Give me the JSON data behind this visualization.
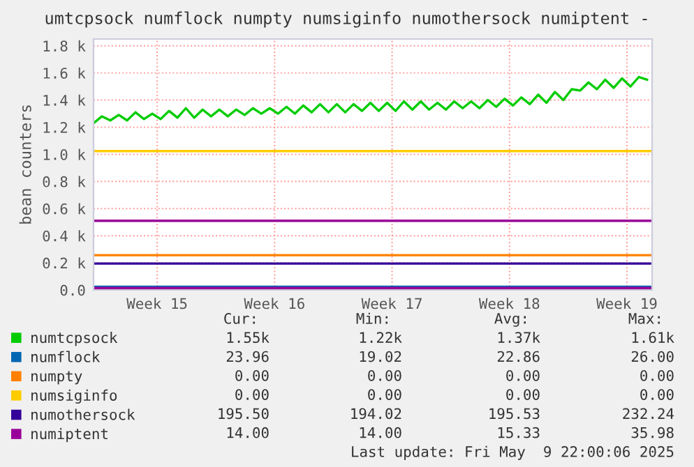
{
  "chart_data": {
    "type": "line",
    "title": "umtcpsock numflock numpty numsiginfo numothersock numiptent -",
    "ylabel": "bean counters",
    "xlim": [
      "2025-04-06T17:00",
      "2025-05-10T00:00"
    ],
    "xticks": [
      {
        "value": "2025-04-10T12:00",
        "label": "Week 15"
      },
      {
        "value": "2025-04-17T12:00",
        "label": "Week 16"
      },
      {
        "value": "2025-04-24T12:00",
        "label": "Week 17"
      },
      {
        "value": "2025-05-01T12:00",
        "label": "Week 18"
      },
      {
        "value": "2025-05-08T12:00",
        "label": "Week 19"
      }
    ],
    "ylim": [
      0,
      1850
    ],
    "yticks": [
      {
        "value": 0,
        "label": "0.0"
      },
      {
        "value": 200,
        "label": "0.2 k"
      },
      {
        "value": 400,
        "label": "0.4 k"
      },
      {
        "value": 600,
        "label": "0.6 k"
      },
      {
        "value": 800,
        "label": "0.8 k"
      },
      {
        "value": 1000,
        "label": "1.0 k"
      },
      {
        "value": 1200,
        "label": "1.2 k"
      },
      {
        "value": 1400,
        "label": "1.4 k"
      },
      {
        "value": 1600,
        "label": "1.6 k"
      },
      {
        "value": 1800,
        "label": "1.8 k"
      }
    ],
    "grid": true,
    "legend": "bottom",
    "series": [
      {
        "name": "numtcpsock",
        "color": "#00cc00",
        "x": [
          "2025-04-06T17:00",
          "2025-04-07T05:00",
          "2025-04-07T17:00",
          "2025-04-08T05:00",
          "2025-04-08T17:00",
          "2025-04-09T05:00",
          "2025-04-09T17:00",
          "2025-04-10T05:00",
          "2025-04-10T17:00",
          "2025-04-11T05:00",
          "2025-04-11T17:00",
          "2025-04-12T05:00",
          "2025-04-12T17:00",
          "2025-04-13T05:00",
          "2025-04-13T17:00",
          "2025-04-14T05:00",
          "2025-04-14T17:00",
          "2025-04-15T05:00",
          "2025-04-15T17:00",
          "2025-04-16T05:00",
          "2025-04-16T17:00",
          "2025-04-17T05:00",
          "2025-04-17T17:00",
          "2025-04-18T05:00",
          "2025-04-18T17:00",
          "2025-04-19T05:00",
          "2025-04-19T17:00",
          "2025-04-20T05:00",
          "2025-04-20T17:00",
          "2025-04-21T05:00",
          "2025-04-21T17:00",
          "2025-04-22T05:00",
          "2025-04-22T17:00",
          "2025-04-23T05:00",
          "2025-04-23T17:00",
          "2025-04-24T05:00",
          "2025-04-24T17:00",
          "2025-04-25T05:00",
          "2025-04-25T17:00",
          "2025-04-26T05:00",
          "2025-04-26T17:00",
          "2025-04-27T05:00",
          "2025-04-27T17:00",
          "2025-04-28T05:00",
          "2025-04-28T17:00",
          "2025-04-29T05:00",
          "2025-04-29T17:00",
          "2025-04-30T05:00",
          "2025-04-30T17:00",
          "2025-05-01T05:00",
          "2025-05-01T17:00",
          "2025-05-02T05:00",
          "2025-05-02T17:00",
          "2025-05-03T05:00",
          "2025-05-03T17:00",
          "2025-05-04T05:00",
          "2025-05-04T17:00",
          "2025-05-05T05:00",
          "2025-05-05T17:00",
          "2025-05-06T05:00",
          "2025-05-06T17:00",
          "2025-05-07T05:00",
          "2025-05-07T17:00",
          "2025-05-08T05:00",
          "2025-05-08T17:00",
          "2025-05-09T05:00",
          "2025-05-09T17:00"
        ],
        "values": [
          1230,
          1280,
          1250,
          1290,
          1250,
          1310,
          1260,
          1300,
          1260,
          1320,
          1270,
          1340,
          1270,
          1330,
          1280,
          1330,
          1280,
          1330,
          1290,
          1340,
          1300,
          1340,
          1300,
          1350,
          1300,
          1360,
          1310,
          1370,
          1310,
          1370,
          1310,
          1370,
          1320,
          1380,
          1320,
          1380,
          1320,
          1390,
          1330,
          1390,
          1330,
          1380,
          1330,
          1390,
          1340,
          1390,
          1340,
          1400,
          1350,
          1410,
          1360,
          1420,
          1370,
          1440,
          1380,
          1460,
          1400,
          1480,
          1470,
          1530,
          1480,
          1550,
          1490,
          1560,
          1500,
          1570,
          1550
        ]
      },
      {
        "name": "numflock",
        "color": "#0066b3",
        "x": [
          "2025-04-06T17:00",
          "2025-05-09T22:00"
        ],
        "values": [
          24,
          24
        ]
      },
      {
        "name": "numpty",
        "color": "#ff8000",
        "values": [
          null
        ]
      },
      {
        "name": "numsiginfo",
        "color": "#ffcc00",
        "values": [
          null
        ]
      },
      {
        "name": "numothersock",
        "color": "#330099",
        "x": [
          "2025-04-06T17:00",
          "2025-05-09T22:00"
        ],
        "values": [
          195,
          195
        ]
      },
      {
        "name": "numiptent",
        "color": "#990099",
        "x": [
          "2025-04-06T17:00",
          "2025-05-09T22:00"
        ],
        "values": [
          14,
          14
        ]
      }
    ],
    "ref_lines": [
      {
        "axis": "y",
        "value": 1024,
        "label": null,
        "color": "#ffcc00"
      },
      {
        "axis": "y",
        "value": 510,
        "label": null,
        "color": "#990099"
      },
      {
        "axis": "y",
        "value": 256,
        "label": null,
        "color": "#ff8000"
      }
    ],
    "annotations": [
      "Cur:",
      "Min:",
      "Avg:",
      "Max:",
      "1.55k",
      "1.22k",
      "1.37k",
      "1.61k",
      "23.96",
      "19.02",
      "22.86",
      "26.00",
      "0.00",
      "0.00",
      "0.00",
      "0.00",
      "0.00",
      "0.00",
      "0.00",
      "0.00",
      "195.50",
      "194.02",
      "195.53",
      "232.24",
      "14.00",
      "14.00",
      "15.33",
      "35.98",
      "Last update: Fri May  9 22:00:06 2025"
    ]
  }
}
